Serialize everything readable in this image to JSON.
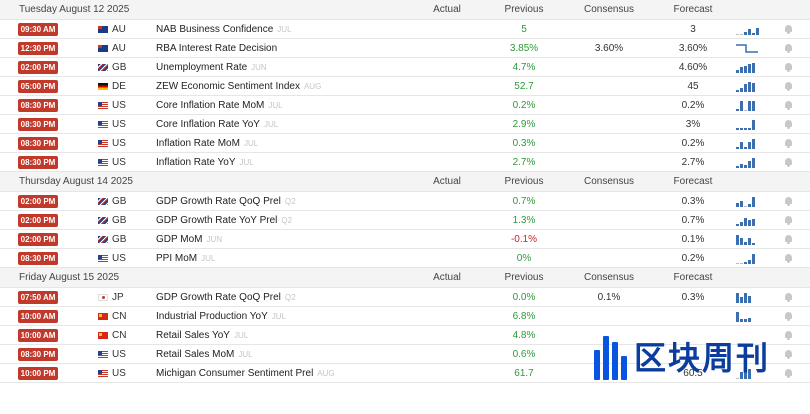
{
  "columns": {
    "actual": "Actual",
    "previous": "Previous",
    "consensus": "Consensus",
    "forecast": "Forecast"
  },
  "sections": [
    {
      "date": "Tuesday August 12 2025",
      "rows": [
        {
          "time": "09:30 AM",
          "flag": "au",
          "country": "AU",
          "event": "NAB Business Confidence",
          "period": "JUL",
          "actual": "",
          "previous": "5",
          "prev_color": "green",
          "consensus": "",
          "forecast": "3",
          "spark": [
            0,
            0,
            3,
            5,
            2,
            6
          ]
        },
        {
          "time": "12:30 PM",
          "flag": "au",
          "country": "AU",
          "event": "RBA Interest Rate Decision",
          "period": "",
          "actual": "",
          "previous": "3.85%",
          "prev_color": "green",
          "consensus": "3.60%",
          "forecast": "3.60%",
          "spark": []
        },
        {
          "time": "02:00 PM",
          "flag": "gb",
          "country": "GB",
          "event": "Unemployment Rate",
          "period": "JUN",
          "actual": "",
          "previous": "4.7%",
          "prev_color": "green",
          "consensus": "",
          "forecast": "4.60%",
          "spark": [
            3,
            5,
            6,
            8,
            9
          ]
        },
        {
          "time": "05:00 PM",
          "flag": "de",
          "country": "DE",
          "event": "ZEW Economic Sentiment Index",
          "period": "AUG",
          "actual": "",
          "previous": "52.7",
          "prev_color": "green",
          "consensus": "",
          "forecast": "45",
          "spark": [
            2,
            4,
            7,
            9,
            8
          ]
        },
        {
          "time": "08:30 PM",
          "flag": "us",
          "country": "US",
          "event": "Core Inflation Rate MoM",
          "period": "JUL",
          "actual": "",
          "previous": "0.2%",
          "prev_color": "green",
          "consensus": "",
          "forecast": "0.2%",
          "spark": [
            2,
            9,
            0,
            9,
            9
          ]
        },
        {
          "time": "08:30 PM",
          "flag": "us",
          "country": "US",
          "event": "Core Inflation Rate YoY",
          "period": "JUL",
          "actual": "",
          "previous": "2.9%",
          "prev_color": "green",
          "consensus": "",
          "forecast": "3%",
          "spark": [
            2,
            2,
            2,
            2,
            9
          ]
        },
        {
          "time": "08:30 PM",
          "flag": "us",
          "country": "US",
          "event": "Inflation Rate MoM",
          "period": "JUL",
          "actual": "",
          "previous": "0.3%",
          "prev_color": "green",
          "consensus": "",
          "forecast": "0.2%",
          "spark": [
            2,
            6,
            2,
            6,
            9
          ]
        },
        {
          "time": "08:30 PM",
          "flag": "us",
          "country": "US",
          "event": "Inflation Rate YoY",
          "period": "JUL",
          "actual": "",
          "previous": "2.7%",
          "prev_color": "green",
          "consensus": "",
          "forecast": "2.7%",
          "spark": [
            2,
            4,
            3,
            6,
            9
          ]
        }
      ]
    },
    {
      "date": "Thursday August 14 2025",
      "rows": [
        {
          "time": "02:00 PM",
          "flag": "gb",
          "country": "GB",
          "event": "GDP Growth Rate QoQ Prel",
          "period": "Q2",
          "actual": "",
          "previous": "0.7%",
          "prev_color": "green",
          "consensus": "",
          "forecast": "0.3%",
          "spark": [
            4,
            5,
            0,
            3,
            9
          ]
        },
        {
          "time": "02:00 PM",
          "flag": "gb",
          "country": "GB",
          "event": "GDP Growth Rate YoY Prel",
          "period": "Q2",
          "actual": "",
          "previous": "1.3%",
          "prev_color": "green",
          "consensus": "",
          "forecast": "0.7%",
          "spark": [
            2,
            4,
            7,
            5,
            6
          ]
        },
        {
          "time": "02:00 PM",
          "flag": "gb",
          "country": "GB",
          "event": "GDP MoM",
          "period": "JUN",
          "actual": "",
          "previous": "-0.1%",
          "prev_color": "red",
          "consensus": "",
          "forecast": "0.1%",
          "spark": [
            9,
            6,
            3,
            6,
            2
          ]
        },
        {
          "time": "08:30 PM",
          "flag": "us",
          "country": "US",
          "event": "PPI MoM",
          "period": "JUL",
          "actual": "",
          "previous": "0%",
          "prev_color": "green",
          "consensus": "",
          "forecast": "0.2%",
          "spark": [
            0,
            0,
            2,
            4,
            9
          ]
        }
      ]
    },
    {
      "date": "Friday August 15 2025",
      "rows": [
        {
          "time": "07:50 AM",
          "flag": "jp",
          "country": "JP",
          "event": "GDP Growth Rate QoQ Prel",
          "period": "Q2",
          "actual": "",
          "previous": "0.0%",
          "prev_color": "green",
          "consensus": "0.1%",
          "forecast": "0.3%",
          "spark": [
            9,
            5,
            9,
            6
          ]
        },
        {
          "time": "10:00 AM",
          "flag": "cn",
          "country": "CN",
          "event": "Industrial Production YoY",
          "period": "JUL",
          "actual": "",
          "previous": "6.8%",
          "prev_color": "green",
          "consensus": "",
          "forecast": "",
          "spark": [
            9,
            3,
            3,
            4
          ]
        },
        {
          "time": "10:00 AM",
          "flag": "cn",
          "country": "CN",
          "event": "Retail Sales YoY",
          "period": "JUL",
          "actual": "",
          "previous": "4.8%",
          "prev_color": "green",
          "consensus": "",
          "forecast": "",
          "spark": []
        },
        {
          "time": "08:30 PM",
          "flag": "us",
          "country": "US",
          "event": "Retail Sales MoM",
          "period": "JUL",
          "actual": "",
          "previous": "0.6%",
          "prev_color": "green",
          "consensus": "",
          "forecast": "",
          "spark": []
        },
        {
          "time": "10:00 PM",
          "flag": "us",
          "country": "US",
          "event": "Michigan Consumer Sentiment Prel",
          "period": "AUG",
          "actual": "",
          "previous": "61.7",
          "prev_color": "green",
          "consensus": "",
          "forecast": "60.5",
          "spark": [
            0,
            6,
            7,
            9
          ]
        }
      ]
    }
  ],
  "watermark": {
    "text": "区块周刊",
    "color": "#0a3d9e"
  }
}
